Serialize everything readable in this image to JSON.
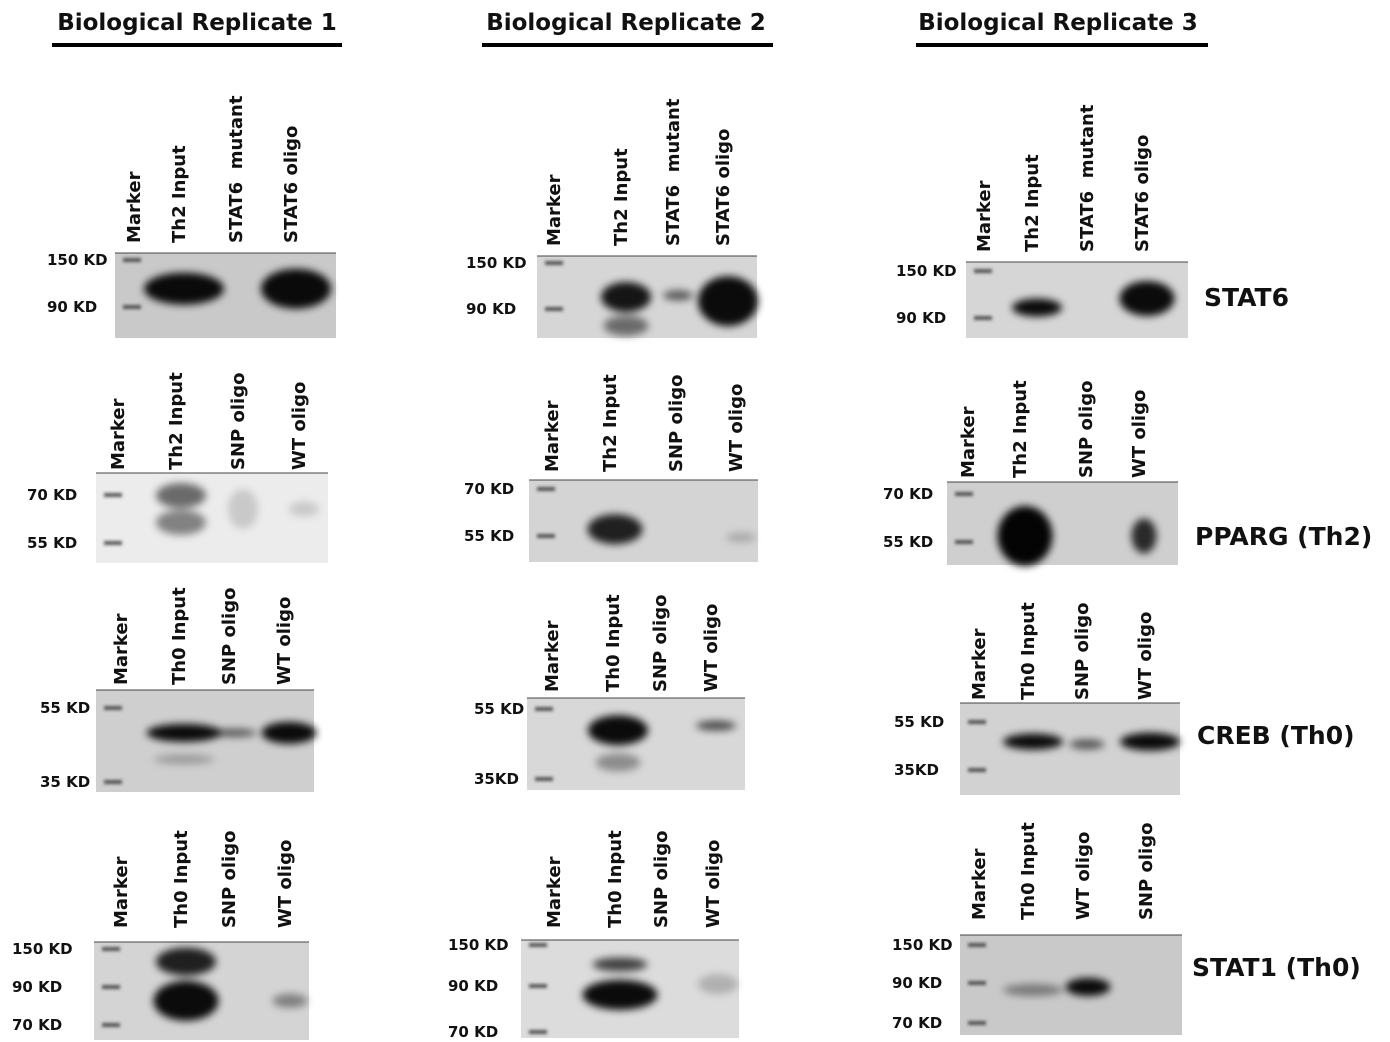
{
  "replicates": [
    {
      "title": "Biological Replicate 1",
      "blots": [
        {
          "lanes": [
            "Marker",
            "Th2 Input",
            "STAT6  mutant",
            "STAT6 oligo"
          ],
          "markers": [
            "150 KD",
            "90 KD"
          ]
        },
        {
          "lanes": [
            "Marker",
            "Th2 Input",
            "SNP oligo",
            "WT oligo"
          ],
          "markers": [
            "70 KD",
            "55 KD"
          ]
        },
        {
          "lanes": [
            "Marker",
            "Th0 Input",
            "SNP oligo",
            "WT oligo"
          ],
          "markers": [
            "55 KD",
            "35 KD"
          ]
        },
        {
          "lanes": [
            "Marker",
            "Th0 Input",
            "SNP oligo",
            "WT oligo"
          ],
          "markers": [
            "150 KD",
            "90 KD",
            "70 KD"
          ]
        }
      ]
    },
    {
      "title": "Biological Replicate 2",
      "blots": [
        {
          "lanes": [
            "Marker",
            "Th2 Input",
            "STAT6  mutant",
            "STAT6 oligo"
          ],
          "markers": [
            "150 KD",
            "90 KD"
          ]
        },
        {
          "lanes": [
            "Marker",
            "Th2 Input",
            "SNP oligo",
            "WT oligo"
          ],
          "markers": [
            "70 KD",
            "55 KD"
          ]
        },
        {
          "lanes": [
            "Marker",
            "Th0 Input",
            "SNP oligo",
            "WT oligo"
          ],
          "markers": [
            "55 KD",
            "35KD"
          ]
        },
        {
          "lanes": [
            "Marker",
            "Th0 Input",
            "SNP oligo",
            "WT oligo"
          ],
          "markers": [
            "150 KD",
            "90 KD",
            "70 KD"
          ]
        }
      ]
    },
    {
      "title": "Biological Replicate 3",
      "blots": [
        {
          "lanes": [
            "Marker",
            "Th2 Input",
            "STAT6  mutant",
            "STAT6 oligo"
          ],
          "markers": [
            "150 KD",
            "90 KD"
          ]
        },
        {
          "lanes": [
            "Marker",
            "Th2 Input",
            "SNP oligo",
            "WT oligo"
          ],
          "markers": [
            "70 KD",
            "55 KD"
          ]
        },
        {
          "lanes": [
            "Marker",
            "Th0 Input",
            "SNP oligo",
            "WT oligo"
          ],
          "markers": [
            "55 KD",
            "35KD"
          ]
        },
        {
          "lanes": [
            "Marker",
            "Th0 Input",
            "WT oligo",
            "SNP oligo"
          ],
          "markers": [
            "150 KD",
            "90 KD",
            "70 KD"
          ]
        }
      ]
    }
  ],
  "proteins": [
    "STAT6",
    "PPARG (Th2)",
    "CREB (Th0)",
    "STAT1 (Th0)"
  ]
}
